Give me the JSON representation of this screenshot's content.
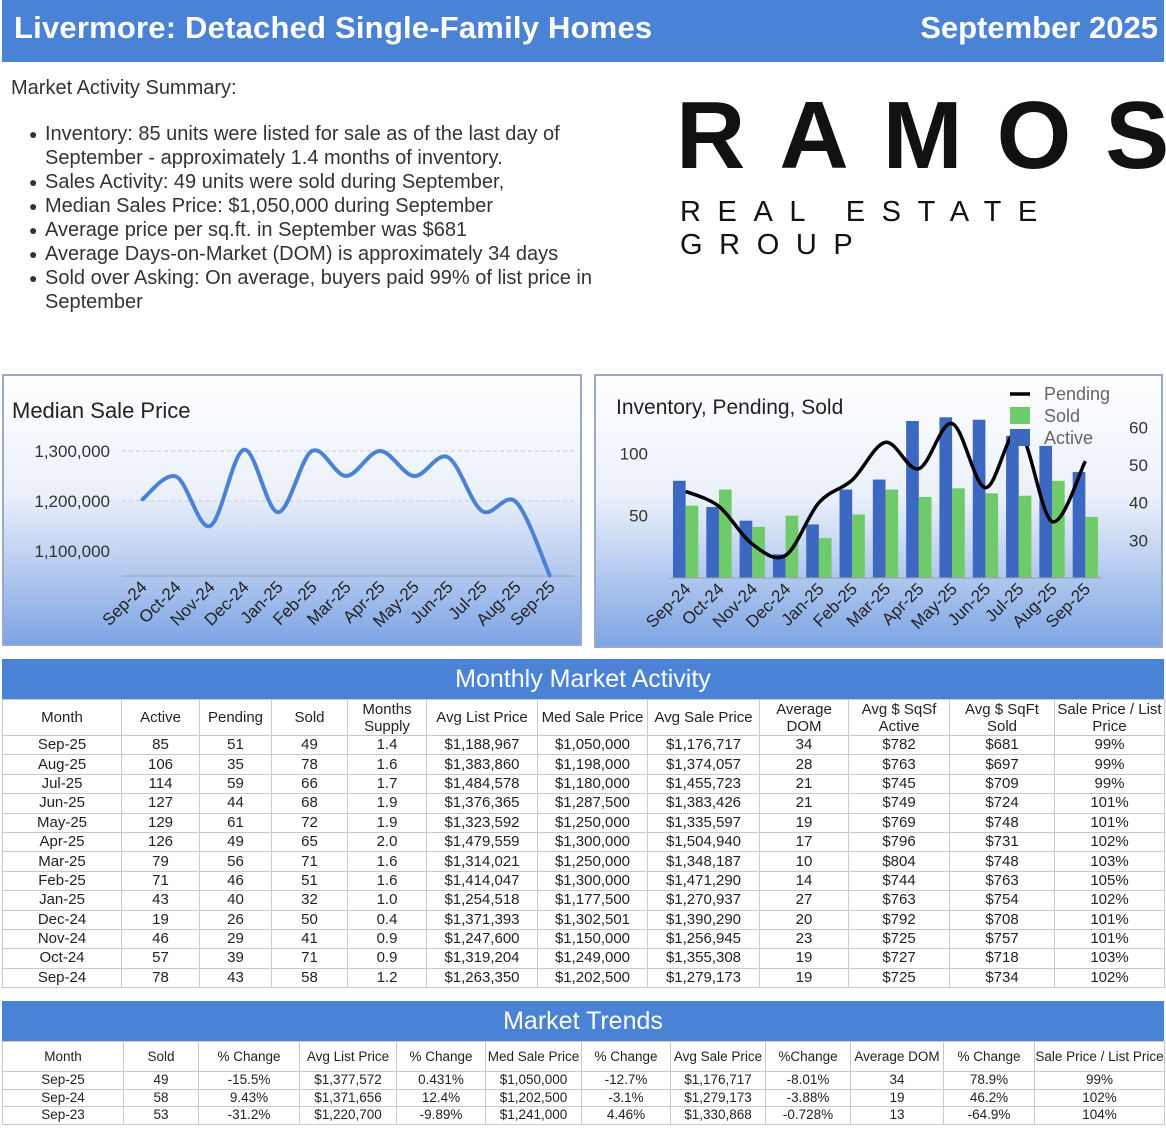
{
  "header": {
    "title": "Livermore: Detached Single-Family Homes",
    "date": "September  2025"
  },
  "summary": {
    "title": "Market Activity Summary:",
    "bullets": [
      "Inventory: 85 units were listed for sale as of the last day of September - approximately 1.4 months of inventory.",
      "Sales Activity: 49 units were sold during September,",
      "Median Sales Price: $1,050,000  during September",
      "Average price per sq.ft. in September was $681",
      "Average Days-on-Market (DOM) is approximately 34 days",
      "Sold over Asking: On average, buyers paid 99% of list price in September"
    ]
  },
  "logo": {
    "word": "RAMOS",
    "sub": "REAL ESTATE GROUP"
  },
  "chart_data": [
    {
      "type": "line",
      "title": "Median Sale Price",
      "categories": [
        "Sep-24",
        "Oct-24",
        "Nov-24",
        "Dec-24",
        "Jan-25",
        "Feb-25",
        "Mar-25",
        "Apr-25",
        "May-25",
        "Jun-25",
        "Jul-25",
        "Aug-25",
        "Sep-25"
      ],
      "series": [
        {
          "values": [
            1202500,
            1249000,
            1150000,
            1302501,
            1177500,
            1300000,
            1250000,
            1300000,
            1250000,
            1287500,
            1180000,
            1198000,
            1050000
          ]
        }
      ],
      "yticks": [
        "1,100,000",
        "1,200,000",
        "1,300,000"
      ],
      "ylim": [
        1050000,
        1330000
      ],
      "grid": true,
      "color": "#4a82d6"
    },
    {
      "type": "bar",
      "title": "Inventory, Pending, Sold",
      "categories": [
        "Sep-24",
        "Oct-24",
        "Nov-24",
        "Dec-24",
        "Jan-25",
        "Feb-25",
        "Mar-25",
        "Apr-25",
        "May-25",
        "Jun-25",
        "Jul-25",
        "Aug-25",
        "Sep-25"
      ],
      "series": [
        {
          "name": "Active",
          "values": [
            78,
            57,
            46,
            19,
            43,
            71,
            79,
            126,
            129,
            127,
            114,
            106,
            85
          ],
          "color": "#3c68c2"
        },
        {
          "name": "Sold",
          "values": [
            58,
            71,
            41,
            50,
            32,
            51,
            71,
            65,
            72,
            68,
            66,
            78,
            49
          ],
          "color": "#6fca6a"
        },
        {
          "name": "Pending",
          "values": [
            43,
            39,
            29,
            26,
            40,
            46,
            56,
            49,
            61,
            44,
            59,
            35,
            51
          ],
          "color": "#000000",
          "axis": "right"
        }
      ],
      "yticks_left": [
        "50",
        "100"
      ],
      "yticks_right": [
        "30",
        "40",
        "50",
        "60"
      ],
      "ylim_left": [
        0,
        130
      ],
      "ylim_right": [
        20,
        63
      ],
      "legend": "top-right"
    }
  ],
  "activity": {
    "title": "Monthly Market Activity",
    "columns": [
      "Month",
      "Active",
      "Pending",
      "Sold",
      "Months Supply",
      "Avg List Price",
      "Med Sale Price",
      "Avg Sale Price",
      "Average DOM",
      "Avg $ SqSf Active",
      "Avg $ SqFt Sold",
      "Sale Price / List Price"
    ],
    "rows": [
      [
        "Sep-25",
        "85",
        "51",
        "49",
        "1.4",
        "$1,188,967",
        "$1,050,000",
        "$1,176,717",
        "34",
        "$782",
        "$681",
        "99%"
      ],
      [
        "Aug-25",
        "106",
        "35",
        "78",
        "1.6",
        "$1,383,860",
        "$1,198,000",
        "$1,374,057",
        "28",
        "$763",
        "$697",
        "99%"
      ],
      [
        "Jul-25",
        "114",
        "59",
        "66",
        "1.7",
        "$1,484,578",
        "$1,180,000",
        "$1,455,723",
        "21",
        "$745",
        "$709",
        "99%"
      ],
      [
        "Jun-25",
        "127",
        "44",
        "68",
        "1.9",
        "$1,376,365",
        "$1,287,500",
        "$1,383,426",
        "21",
        "$749",
        "$724",
        "101%"
      ],
      [
        "May-25",
        "129",
        "61",
        "72",
        "1.9",
        "$1,323,592",
        "$1,250,000",
        "$1,335,597",
        "19",
        "$769",
        "$748",
        "101%"
      ],
      [
        "Apr-25",
        "126",
        "49",
        "65",
        "2.0",
        "$1,479,559",
        "$1,300,000",
        "$1,504,940",
        "17",
        "$796",
        "$731",
        "102%"
      ],
      [
        "Mar-25",
        "79",
        "56",
        "71",
        "1.6",
        "$1,314,021",
        "$1,250,000",
        "$1,348,187",
        "10",
        "$804",
        "$748",
        "103%"
      ],
      [
        "Feb-25",
        "71",
        "46",
        "51",
        "1.6",
        "$1,414,047",
        "$1,300,000",
        "$1,471,290",
        "14",
        "$744",
        "$763",
        "105%"
      ],
      [
        "Jan-25",
        "43",
        "40",
        "32",
        "1.0",
        "$1,254,518",
        "$1,177,500",
        "$1,270,937",
        "27",
        "$763",
        "$754",
        "102%"
      ],
      [
        "Dec-24",
        "19",
        "26",
        "50",
        "0.4",
        "$1,371,393",
        "$1,302,501",
        "$1,390,290",
        "20",
        "$792",
        "$708",
        "101%"
      ],
      [
        "Nov-24",
        "46",
        "29",
        "41",
        "0.9",
        "$1,247,600",
        "$1,150,000",
        "$1,256,945",
        "23",
        "$725",
        "$757",
        "101%"
      ],
      [
        "Oct-24",
        "57",
        "39",
        "71",
        "0.9",
        "$1,319,204",
        "$1,249,000",
        "$1,355,308",
        "19",
        "$727",
        "$718",
        "103%"
      ],
      [
        "Sep-24",
        "78",
        "43",
        "58",
        "1.2",
        "$1,263,350",
        "$1,202,500",
        "$1,279,173",
        "19",
        "$725",
        "$734",
        "102%"
      ]
    ]
  },
  "trends": {
    "title": "Market Trends",
    "columns": [
      "Month",
      "Sold",
      "% Change",
      "Avg List Price",
      "% Change",
      "Med Sale Price",
      "% Change",
      "Avg Sale Price",
      "%Change",
      "Average DOM",
      "% Change",
      "Sale Price / List Price"
    ],
    "rows": [
      [
        "Sep-25",
        "49",
        "-15.5%",
        "$1,377,572",
        "0.431%",
        "$1,050,000",
        "-12.7%",
        "$1,176,717",
        "-8.01%",
        "34",
        "78.9%",
        "99%"
      ],
      [
        "Sep-24",
        "58",
        "9.43%",
        "$1,371,656",
        "12.4%",
        "$1,202,500",
        "-3.1%",
        "$1,279,173",
        "-3.88%",
        "19",
        "46.2%",
        "102%"
      ],
      [
        "Sep-23",
        "53",
        "-31.2%",
        "$1,220,700",
        "-9.89%",
        "$1,241,000",
        "4.46%",
        "$1,330,868",
        "-0.728%",
        "13",
        "-64.9%",
        "104%"
      ]
    ]
  }
}
